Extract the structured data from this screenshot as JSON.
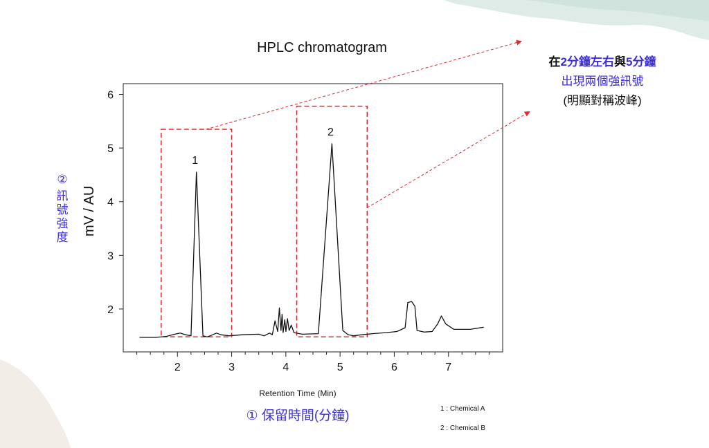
{
  "chart_data": {
    "type": "line",
    "title": "HPLC chromatogram",
    "xlabel": "Retention Time (Min)",
    "ylabel": "mV / AU",
    "xlim": [
      1.0,
      8.0
    ],
    "ylim": [
      1.2,
      6.2
    ],
    "x_ticks": [
      2,
      3,
      4,
      5,
      6,
      7
    ],
    "y_ticks": [
      2,
      3,
      4,
      5,
      6
    ],
    "grid": false,
    "series": [
      {
        "points": [
          [
            1.3,
            1.47
          ],
          [
            1.6,
            1.47
          ],
          [
            1.8,
            1.49
          ],
          [
            1.95,
            1.53
          ],
          [
            2.05,
            1.55
          ],
          [
            2.15,
            1.52
          ],
          [
            2.25,
            1.5
          ],
          [
            2.35,
            4.55
          ],
          [
            2.47,
            1.5
          ],
          [
            2.55,
            1.48
          ],
          [
            2.65,
            1.52
          ],
          [
            2.72,
            1.55
          ],
          [
            2.8,
            1.52
          ],
          [
            2.95,
            1.5
          ],
          [
            3.2,
            1.52
          ],
          [
            3.5,
            1.53
          ],
          [
            3.6,
            1.5
          ],
          [
            3.7,
            1.55
          ],
          [
            3.75,
            1.52
          ],
          [
            3.8,
            1.78
          ],
          [
            3.85,
            1.58
          ],
          [
            3.88,
            2.02
          ],
          [
            3.91,
            1.6
          ],
          [
            3.93,
            1.9
          ],
          [
            3.95,
            1.56
          ],
          [
            3.98,
            1.8
          ],
          [
            4.0,
            1.58
          ],
          [
            4.03,
            1.82
          ],
          [
            4.06,
            1.6
          ],
          [
            4.1,
            1.7
          ],
          [
            4.15,
            1.56
          ],
          [
            4.3,
            1.53
          ],
          [
            4.6,
            1.54
          ],
          [
            4.85,
            5.08
          ],
          [
            5.05,
            1.6
          ],
          [
            5.15,
            1.52
          ],
          [
            5.25,
            1.5
          ],
          [
            5.4,
            1.52
          ],
          [
            5.6,
            1.54
          ],
          [
            5.85,
            1.56
          ],
          [
            6.05,
            1.58
          ],
          [
            6.2,
            1.65
          ],
          [
            6.25,
            2.12
          ],
          [
            6.32,
            2.14
          ],
          [
            6.38,
            2.05
          ],
          [
            6.42,
            1.6
          ],
          [
            6.55,
            1.57
          ],
          [
            6.7,
            1.58
          ],
          [
            6.8,
            1.72
          ],
          [
            6.87,
            1.87
          ],
          [
            6.95,
            1.72
          ],
          [
            7.1,
            1.62
          ],
          [
            7.4,
            1.62
          ],
          [
            7.65,
            1.66
          ]
        ]
      }
    ],
    "peak_labels": [
      {
        "label": "1",
        "x": 2.35,
        "y": 4.55
      },
      {
        "label": "2",
        "x": 4.85,
        "y": 5.08
      }
    ],
    "highlight_boxes": [
      {
        "x_range": [
          1.7,
          3.0
        ],
        "y_range": [
          1.48,
          5.35
        ]
      },
      {
        "x_range": [
          4.2,
          5.5
        ],
        "y_range": [
          1.48,
          5.78
        ]
      }
    ],
    "highlight_color": "#e0262b"
  },
  "annotations": {
    "note_prefix": "在",
    "note_time1": "2分鐘左右",
    "note_mid": "與",
    "note_time2": "5分鐘",
    "note_line2": "出現兩個強訊號",
    "note_line3": "(明顯對稱波峰)",
    "y_num": "②",
    "y_chars": [
      "訊",
      "號",
      "強",
      "度"
    ],
    "x_text": "① 保留時間(分鐘)",
    "legend_a": "1 : Chemical A",
    "legend_b": "2 : Chemical B",
    "accent_color": "#3a2de0"
  }
}
